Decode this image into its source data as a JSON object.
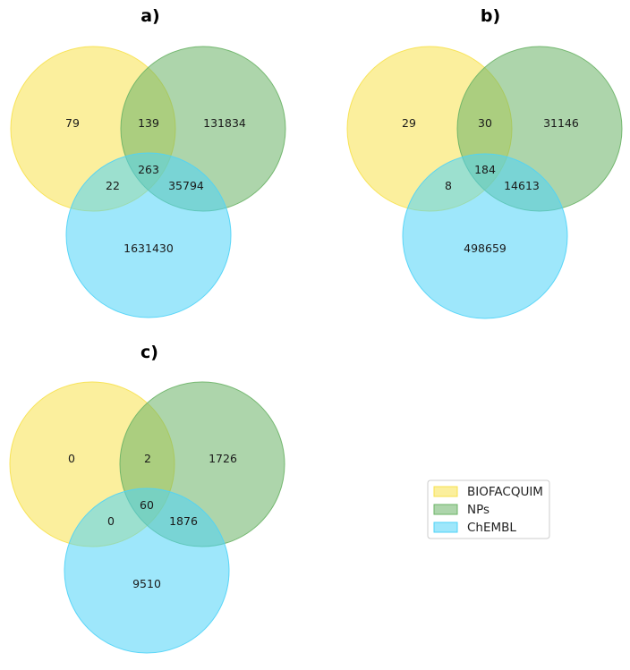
{
  "colors": {
    "BIOFACQUIM": "#f7e14d",
    "NPs": "#6ab366",
    "ChEMBL": "#4fd3f7"
  },
  "legend": [
    {
      "label": "BIOFACQUIM",
      "color_key": "BIOFACQUIM"
    },
    {
      "label": "NPs",
      "color_key": "NPs"
    },
    {
      "label": "ChEMBL",
      "color_key": "ChEMBL"
    }
  ],
  "diagrams": [
    {
      "title": "a)",
      "counts": {
        "biofacquim_only": "79",
        "biofacquim_nps": "139",
        "nps_only": "131834",
        "all_three": "263",
        "biofacquim_chembl": "22",
        "nps_chembl": "35794",
        "chembl_only": "1631430"
      }
    },
    {
      "title": "b)",
      "counts": {
        "biofacquim_only": "29",
        "biofacquim_nps": "30",
        "nps_only": "31146",
        "all_three": "184",
        "biofacquim_chembl": "8",
        "nps_chembl": "14613",
        "chembl_only": "498659"
      }
    },
    {
      "title": "c)",
      "counts": {
        "biofacquim_only": "0",
        "biofacquim_nps": "2",
        "nps_only": "1726",
        "all_three": "60",
        "biofacquim_chembl": "0",
        "nps_chembl": "1876",
        "chembl_only": "9510"
      }
    }
  ]
}
